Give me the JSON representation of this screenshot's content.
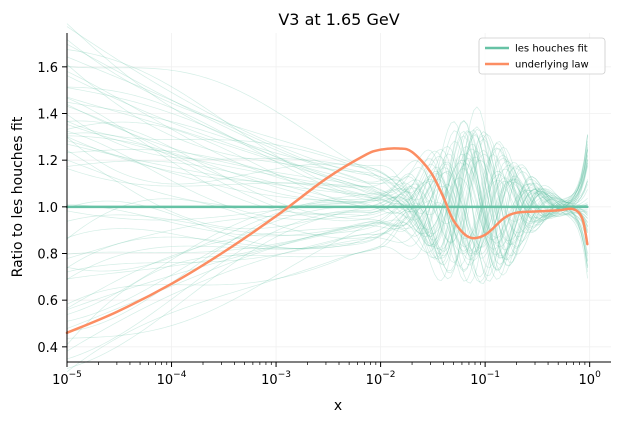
{
  "chart_data": {
    "type": "line",
    "title": "V3 at 1.65 GeV",
    "xlabel": "x",
    "ylabel": "Ratio to les houches fit",
    "xscale": "log",
    "xlim": [
      1e-05,
      1.6
    ],
    "ylim": [
      0.335,
      1.745
    ],
    "xticks": [
      1e-05,
      0.0001,
      0.001,
      0.01,
      0.1,
      1
    ],
    "xtick_labels": [
      {
        "base": "10",
        "exp": "−5"
      },
      {
        "base": "10",
        "exp": "−4"
      },
      {
        "base": "10",
        "exp": "−3"
      },
      {
        "base": "10",
        "exp": "−2"
      },
      {
        "base": "10",
        "exp": "−1"
      },
      {
        "base": "10",
        "exp": "0"
      }
    ],
    "yticks": [
      0.4,
      0.6,
      0.8,
      1.0,
      1.2,
      1.4,
      1.6
    ],
    "ytick_labels": [
      "0.4",
      "0.6",
      "0.8",
      "1.0",
      "1.2",
      "1.4",
      "1.6"
    ],
    "grid": true,
    "legend_position": "top-right",
    "series": [
      {
        "name": "les houches fit",
        "color": "#66c2a5",
        "x": [
          1e-05,
          0.0001,
          0.001,
          0.01,
          0.1,
          0.95
        ],
        "y": [
          1.0,
          1.0,
          1.0,
          1.0,
          1.0,
          1.0
        ]
      },
      {
        "name": "underlying law",
        "color": "#fc8d62",
        "x": [
          1e-05,
          3e-05,
          0.0001,
          0.0003,
          0.001,
          0.003,
          0.007,
          0.01,
          0.015,
          0.02,
          0.03,
          0.04,
          0.05,
          0.07,
          0.1,
          0.15,
          0.2,
          0.3,
          0.5,
          0.7,
          0.85,
          0.95
        ],
        "y": [
          0.46,
          0.55,
          0.67,
          0.8,
          0.96,
          1.12,
          1.22,
          1.245,
          1.25,
          1.235,
          1.15,
          1.04,
          0.94,
          0.87,
          0.88,
          0.95,
          0.975,
          0.98,
          0.985,
          0.99,
          0.95,
          0.84
        ]
      }
    ],
    "replica_band": {
      "color": "#66c2a5",
      "count": 60,
      "description_in_legend": false
    }
  }
}
